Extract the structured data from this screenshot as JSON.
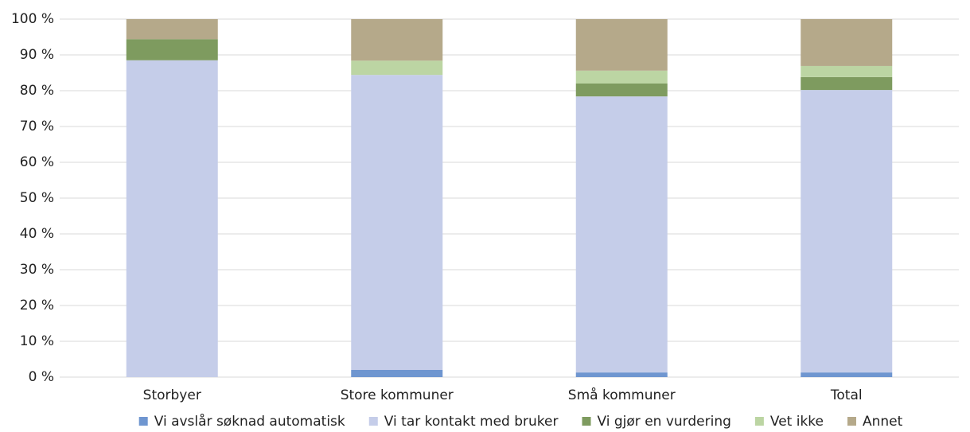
{
  "chart_data": {
    "type": "stacked_bar",
    "categories": [
      "Storbyer",
      "Store kommuner",
      "Små kommuner",
      "Total"
    ],
    "series": [
      {
        "name": "Vi avslår søknad automatisk",
        "color": "#6f96d0",
        "values": [
          0,
          2,
          1.3,
          1.3
        ]
      },
      {
        "name": "Vi tar kontakt med bruker",
        "color": "#c5cde9",
        "values": [
          88.5,
          82.4,
          77.1,
          78.9
        ]
      },
      {
        "name": "Vi gjør en vurdering",
        "color": "#7e9b5f",
        "values": [
          5.9,
          0,
          3.6,
          3.6
        ]
      },
      {
        "name": "Vet ikke",
        "color": "#bcd5a3",
        "values": [
          0,
          4,
          3.6,
          3.1
        ]
      },
      {
        "name": "Annet",
        "color": "#b5a98a",
        "values": [
          5.6,
          11.6,
          14.4,
          13.1
        ]
      }
    ],
    "ylim": [
      0,
      100
    ],
    "yticks": [
      {
        "value": 0,
        "label": "0 %"
      },
      {
        "value": 10,
        "label": "10 %"
      },
      {
        "value": 20,
        "label": "20 %"
      },
      {
        "value": 30,
        "label": "30 %"
      },
      {
        "value": 40,
        "label": "40 %"
      },
      {
        "value": 50,
        "label": "50 %"
      },
      {
        "value": 60,
        "label": "60 %"
      },
      {
        "value": 70,
        "label": "70 %"
      },
      {
        "value": 80,
        "label": "80 %"
      },
      {
        "value": 90,
        "label": "90 %"
      },
      {
        "value": 100,
        "label": "100 %"
      }
    ],
    "grid": true,
    "legend": "bottom"
  }
}
